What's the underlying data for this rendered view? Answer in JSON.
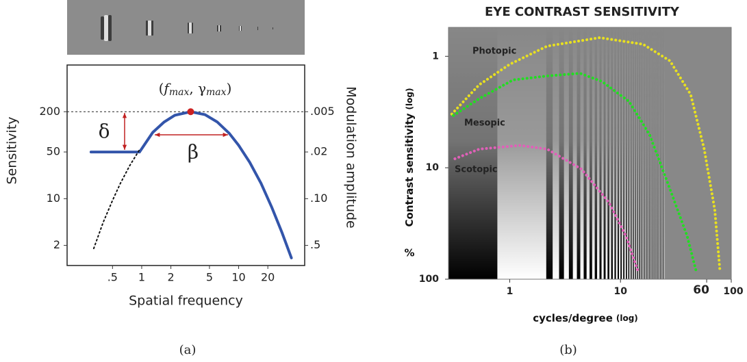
{
  "chart_data": [
    {
      "type": "line",
      "x_label": "Spatial frequency",
      "y_label": "Sensitivity",
      "y2_label": "Modulation amplitude",
      "peak_label_parts": [
        "(",
        "f",
        "max",
        ", γ",
        "max",
        ")"
      ],
      "delta_label": "δ",
      "beta_label": "β",
      "caption": "(a)",
      "log_x": true,
      "log_y": true,
      "xlim": [
        0.17,
        48
      ],
      "xticks": [
        {
          "value": 0.5,
          "label": ".5"
        },
        1,
        2,
        5,
        10,
        20
      ],
      "ylim": [
        1,
        1000
      ],
      "yticks": [
        200,
        50,
        10,
        2
      ],
      "y2lim": [
        1,
        0.001
      ],
      "y2ticks": [
        {
          "value": 0.005,
          "label": ".005"
        },
        {
          "value": 0.02,
          "label": ".02"
        },
        {
          "value": 0.1,
          "label": ".10"
        },
        {
          "value": 0.5,
          "label": ".5"
        }
      ],
      "series": [
        {
          "color": "#3355aa",
          "line_style": "solid",
          "x": [
            0.3,
            0.95,
            1.3,
            1.7,
            2.2,
            3.2,
            4.5,
            6,
            8,
            10,
            13,
            17,
            22,
            28,
            35
          ],
          "values": [
            50,
            50,
            98,
            140,
            177,
            200,
            181,
            141,
            95,
            63,
            35,
            17,
            7.4,
            3.1,
            1.3
          ]
        },
        {
          "color": "#111111",
          "line_style": "dotted",
          "x": [
            0.32,
            0.4,
            0.5,
            0.6,
            0.75,
            0.95
          ],
          "values": [
            1.8,
            4.4,
            9.4,
            16.7,
            31,
            54
          ]
        }
      ],
      "peak": {
        "x": 3.2,
        "y": 200,
        "color": "#cc2222"
      }
    },
    {
      "type": "line",
      "title": "EYE CONTRAST SENSITIVITY",
      "x_label": "cycles/degree",
      "x_label_note": "(log)",
      "y_label": "Contrast sensitivity",
      "y_label_note": "(log)",
      "y_unit": "%",
      "caption": "(b)",
      "log_x": true,
      "log_y": true,
      "xlim": [
        0.28,
        100
      ],
      "xticks": [
        1,
        10,
        60,
        100
      ],
      "highlight_xtick": 60,
      "ylim": [
        100,
        0.55
      ],
      "yticks": [
        1,
        10,
        100
      ],
      "series": [
        {
          "name": "Photopic",
          "color": "#e8e020",
          "line_style": "dotted",
          "x": [
            0.3,
            0.53,
            1,
            2.18,
            6.5,
            16,
            28,
            43,
            57,
            71,
            79
          ],
          "values": [
            3.3,
            1.8,
            1.18,
            0.81,
            0.68,
            0.78,
            1.1,
            2.2,
            6.8,
            23.7,
            83
          ]
        },
        {
          "name": "Mesopic",
          "color": "#22dd22",
          "line_style": "dotted",
          "x": [
            0.31,
            0.53,
            1.07,
            2.18,
            4.3,
            6.8,
            12,
            18.4,
            28,
            40,
            48
          ],
          "values": [
            3.4,
            2.4,
            1.63,
            1.5,
            1.42,
            1.68,
            2.55,
            5.1,
            15.6,
            41,
            83
          ]
        },
        {
          "name": "Scotopic",
          "color": "#e060b8",
          "line_style": "dotted",
          "x": [
            0.32,
            0.53,
            1.24,
            2.18,
            4.45,
            7.9,
            11.2,
            14.3
          ],
          "values": [
            8.3,
            6.8,
            6.3,
            6.8,
            10.3,
            20.6,
            41,
            83
          ]
        }
      ]
    }
  ]
}
